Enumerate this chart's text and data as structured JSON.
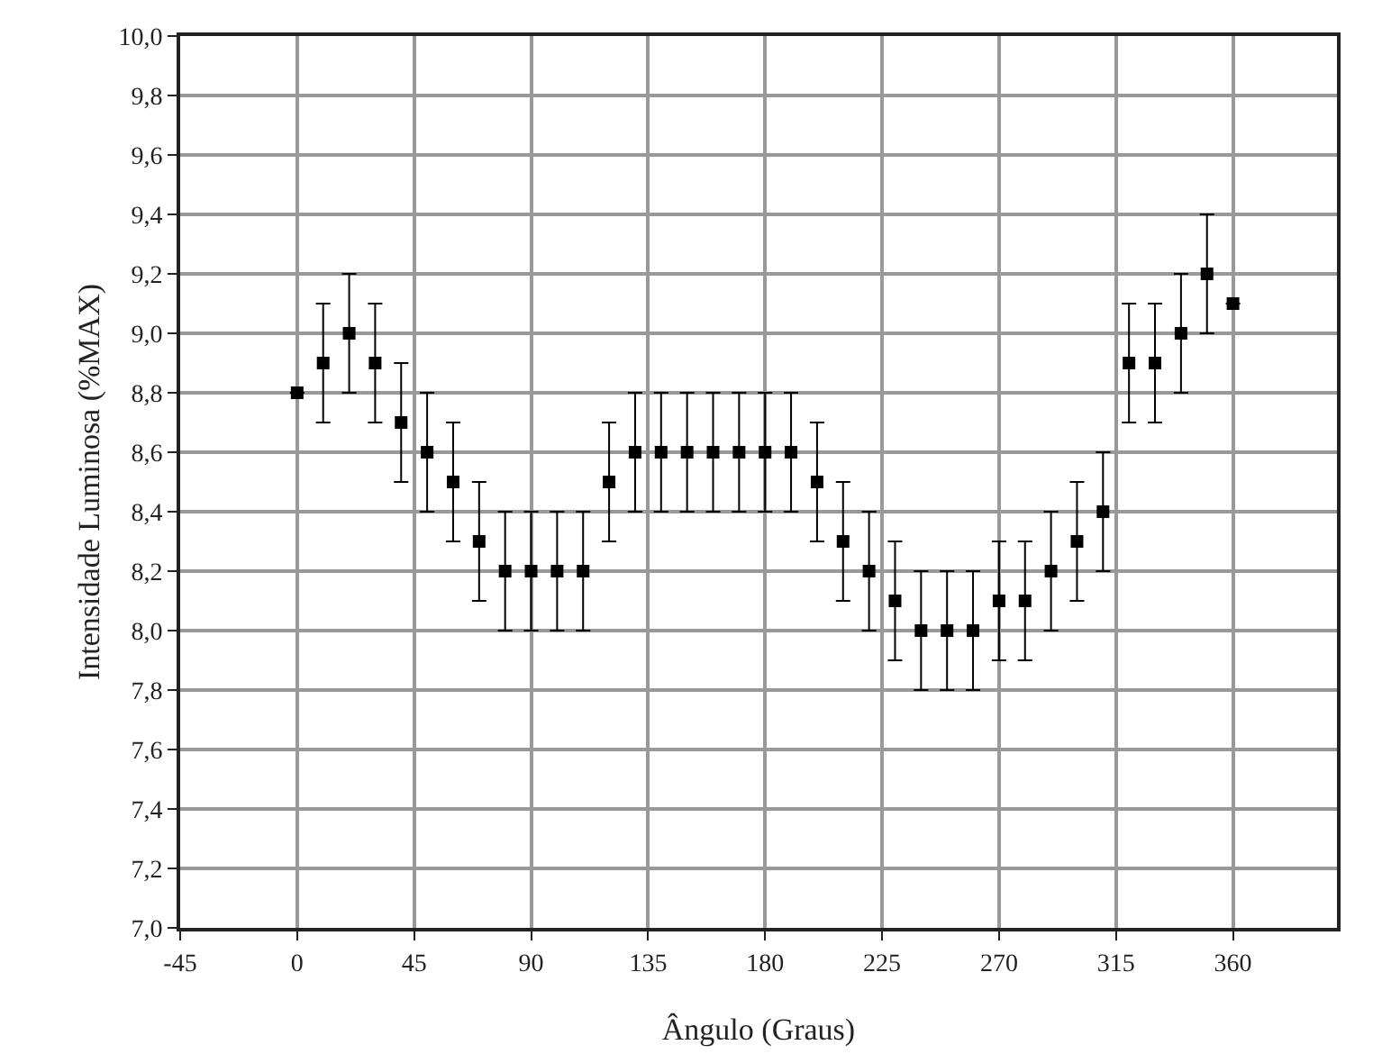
{
  "chart_data": {
    "type": "scatter",
    "xlabel": "Ângulo (Graus)",
    "ylabel": "Intensidade Luminosa (%MAX)",
    "x": [
      0,
      10,
      20,
      30,
      40,
      50,
      60,
      70,
      80,
      90,
      100,
      110,
      120,
      130,
      140,
      150,
      160,
      170,
      180,
      190,
      200,
      210,
      220,
      230,
      240,
      250,
      260,
      270,
      280,
      290,
      300,
      310,
      320,
      330,
      340,
      350,
      360
    ],
    "series": [
      {
        "color": "#000000",
        "values": [
          8.8,
          8.9,
          9.0,
          8.9,
          8.7,
          8.6,
          8.5,
          8.3,
          8.2,
          8.2,
          8.2,
          8.2,
          8.5,
          8.6,
          8.6,
          8.6,
          8.6,
          8.6,
          8.6,
          8.6,
          8.5,
          8.3,
          8.2,
          8.1,
          8.0,
          8.0,
          8.0,
          8.1,
          8.1,
          8.2,
          8.3,
          8.4,
          8.9,
          8.9,
          9.0,
          9.2,
          9.1
        ],
        "errors": [
          null,
          0.2,
          0.2,
          0.2,
          0.2,
          0.2,
          0.2,
          0.2,
          0.2,
          0.2,
          0.2,
          0.2,
          0.2,
          0.2,
          0.2,
          0.2,
          0.2,
          0.2,
          0.2,
          0.2,
          0.2,
          0.2,
          0.2,
          0.2,
          0.2,
          0.2,
          0.2,
          0.2,
          0.2,
          0.2,
          0.2,
          0.2,
          0.2,
          0.2,
          0.2,
          0.2,
          null
        ]
      }
    ],
    "xlim": [
      -45,
      400
    ],
    "xticks": [
      -45,
      0,
      45,
      90,
      135,
      180,
      225,
      270,
      315,
      360
    ],
    "ylim": [
      7.0,
      10.0
    ],
    "yticks": [
      {
        "value": 7.0,
        "label": "7,0"
      },
      {
        "value": 7.2,
        "label": "7,2"
      },
      {
        "value": 7.4,
        "label": "7,4"
      },
      {
        "value": 7.6,
        "label": "7,6"
      },
      {
        "value": 7.8,
        "label": "7,8"
      },
      {
        "value": 8.0,
        "label": "8,0"
      },
      {
        "value": 8.2,
        "label": "8,2"
      },
      {
        "value": 8.4,
        "label": "8,4"
      },
      {
        "value": 8.6,
        "label": "8,6"
      },
      {
        "value": 8.8,
        "label": "8,8"
      },
      {
        "value": 9.0,
        "label": "9,0"
      },
      {
        "value": 9.2,
        "label": "9,2"
      },
      {
        "value": 9.4,
        "label": "9,4"
      },
      {
        "value": 9.6,
        "label": "9,6"
      },
      {
        "value": 9.8,
        "label": "9,8"
      },
      {
        "value": 10.0,
        "label": "10,0"
      }
    ],
    "grid": true,
    "marker": "square"
  }
}
